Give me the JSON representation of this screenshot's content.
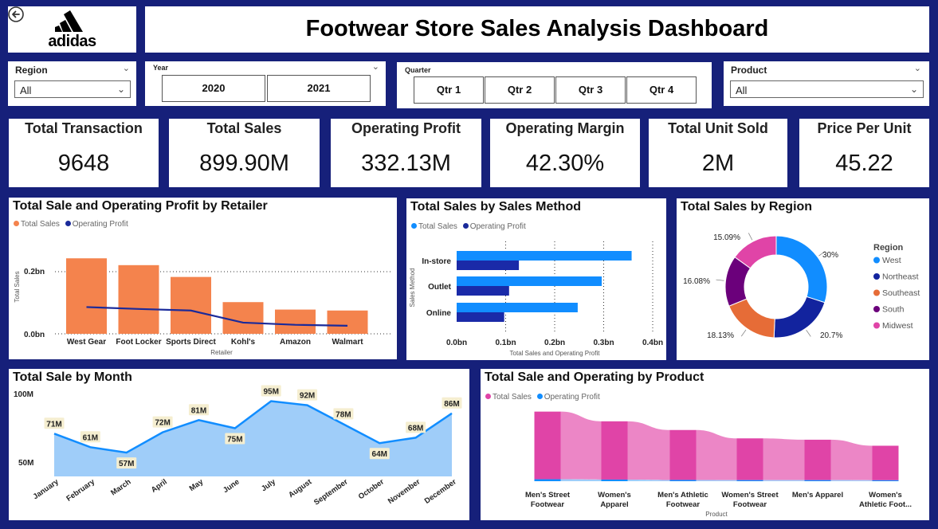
{
  "header": {
    "back_icon": "arrow-left-circle-icon",
    "logo_text": "adidas",
    "title": "Footwear Store Sales Analysis Dashboard"
  },
  "filters": {
    "region": {
      "label": "Region",
      "value": "All"
    },
    "year": {
      "label": "Year",
      "options": [
        "2020",
        "2021"
      ]
    },
    "quarter": {
      "label": "Quarter",
      "options": [
        "Qtr 1",
        "Qtr 2",
        "Qtr 3",
        "Qtr 4"
      ]
    },
    "product": {
      "label": "Product",
      "value": "All"
    }
  },
  "kpis": [
    {
      "label": "Total Transaction",
      "value": "9648"
    },
    {
      "label": "Total Sales",
      "value": "899.90M"
    },
    {
      "label": "Operating Profit",
      "value": "332.13M"
    },
    {
      "label": "Operating Margin",
      "value": "42.30%"
    },
    {
      "label": "Total Unit Sold",
      "value": "2M"
    },
    {
      "label": "Price Per Unit",
      "value": "45.22"
    }
  ],
  "colors": {
    "background": "#16207a",
    "orange": "#f4834d",
    "navy": "#1a2a9a",
    "blue": "#118dff",
    "light_blue": "#9fcdf9",
    "pink": "#e044a7",
    "light_pink": "#ec86c6"
  },
  "charts": {
    "retailer": {
      "title": "Total Sale and Operating Profit by Retailer",
      "legend": [
        "Total Sales",
        "Operating Profit"
      ],
      "ylabel": "Total Sales",
      "xlabel": "Retailer",
      "y_ticks": [
        "0.2bn",
        "0.0bn"
      ]
    },
    "method": {
      "title": "Total Sales by Sales Method",
      "legend": [
        "Total Sales",
        "Operating Profit"
      ],
      "ylabel": "Sales Method",
      "xlabel": "Total Sales and Operating Profit",
      "x_ticks": [
        "0.0bn",
        "0.1bn",
        "0.2bn",
        "0.3bn",
        "0.4bn"
      ]
    },
    "region": {
      "title": "Total Sales by Region",
      "legend_title": "Region"
    },
    "month": {
      "title": "Total Sale by Month",
      "y_ticks": [
        "100M",
        "50M"
      ]
    },
    "product": {
      "title": "Total Sale and Operating by Product",
      "legend": [
        "Total Sales",
        "Operating Profit"
      ],
      "xlabel": "Product",
      "labels": [
        [
          "Men's Street",
          "Footwear"
        ],
        [
          "Women's",
          "Apparel"
        ],
        [
          "Men's Athletic",
          "Footwear"
        ],
        [
          "Women's Street",
          "Footwear"
        ],
        [
          "Men's Apparel",
          ""
        ],
        [
          "Women's",
          "Athletic Foot..."
        ]
      ]
    }
  },
  "chart_data": [
    {
      "type": "bar",
      "title": "Total Sale and Operating Profit by Retailer",
      "xlabel": "Retailer",
      "ylabel": "Total Sales",
      "categories": [
        "West Gear",
        "Foot Locker",
        "Sports Direct",
        "Kohl's",
        "Amazon",
        "Walmart"
      ],
      "series": [
        {
          "name": "Total Sales",
          "values": [
            0.243,
            0.221,
            0.183,
            0.102,
            0.078,
            0.075
          ]
        },
        {
          "name": "Operating Profit",
          "values": [
            0.086,
            0.08,
            0.075,
            0.036,
            0.029,
            0.026
          ]
        }
      ],
      "ylim": [
        0,
        0.28
      ],
      "legend": "top-left"
    },
    {
      "type": "bar",
      "title": "Total Sales by Sales Method",
      "xlabel": "Total Sales and Operating Profit",
      "ylabel": "Sales Method",
      "categories": [
        "In-store",
        "Outlet",
        "Online"
      ],
      "series": [
        {
          "name": "Total Sales",
          "values": [
            0.357,
            0.296,
            0.247
          ]
        },
        {
          "name": "Operating Profit",
          "values": [
            0.127,
            0.107,
            0.097
          ]
        }
      ],
      "xlim": [
        0,
        0.4
      ],
      "legend": "top-left"
    },
    {
      "type": "pie",
      "title": "Total Sales by Region",
      "categories": [
        "West",
        "Northeast",
        "Southeast",
        "South",
        "Midwest"
      ],
      "values": [
        30,
        20.7,
        18.13,
        16.08,
        15.09
      ],
      "labels": [
        "30%",
        "20.7%",
        "18.13%",
        "16.08%",
        "15.09%"
      ],
      "series_colors": [
        "#118dff",
        "#12239e",
        "#e66c37",
        "#6b007b",
        "#e044a7"
      ],
      "legend": "right"
    },
    {
      "type": "area",
      "title": "Total Sale by Month",
      "categories": [
        "January",
        "February",
        "March",
        "April",
        "May",
        "June",
        "July",
        "August",
        "September",
        "October",
        "November",
        "December"
      ],
      "values": [
        71,
        61,
        57,
        72,
        81,
        75,
        95,
        92,
        78,
        64,
        68,
        86
      ],
      "labels": [
        "71M",
        "61M",
        "57M",
        "72M",
        "81M",
        "75M",
        "95M",
        "92M",
        "78M",
        "64M",
        "68M",
        "86M"
      ],
      "ylim": [
        50,
        100
      ]
    },
    {
      "type": "area",
      "title": "Total Sale and Operating by Product",
      "xlabel": "Product",
      "categories": [
        "Men's Street Footwear",
        "Women's Apparel",
        "Men's Athletic Footwear",
        "Women's Street Footwear",
        "Men's Apparel",
        "Women's Athletic Footwear"
      ],
      "series": [
        {
          "name": "Total Sales",
          "values": [
            0.208,
            0.179,
            0.153,
            0.128,
            0.124,
            0.106
          ]
        },
        {
          "name": "Operating Profit",
          "values": [
            0.082,
            0.068,
            0.052,
            0.045,
            0.044,
            0.039
          ]
        }
      ],
      "legend": "top-left"
    }
  ]
}
